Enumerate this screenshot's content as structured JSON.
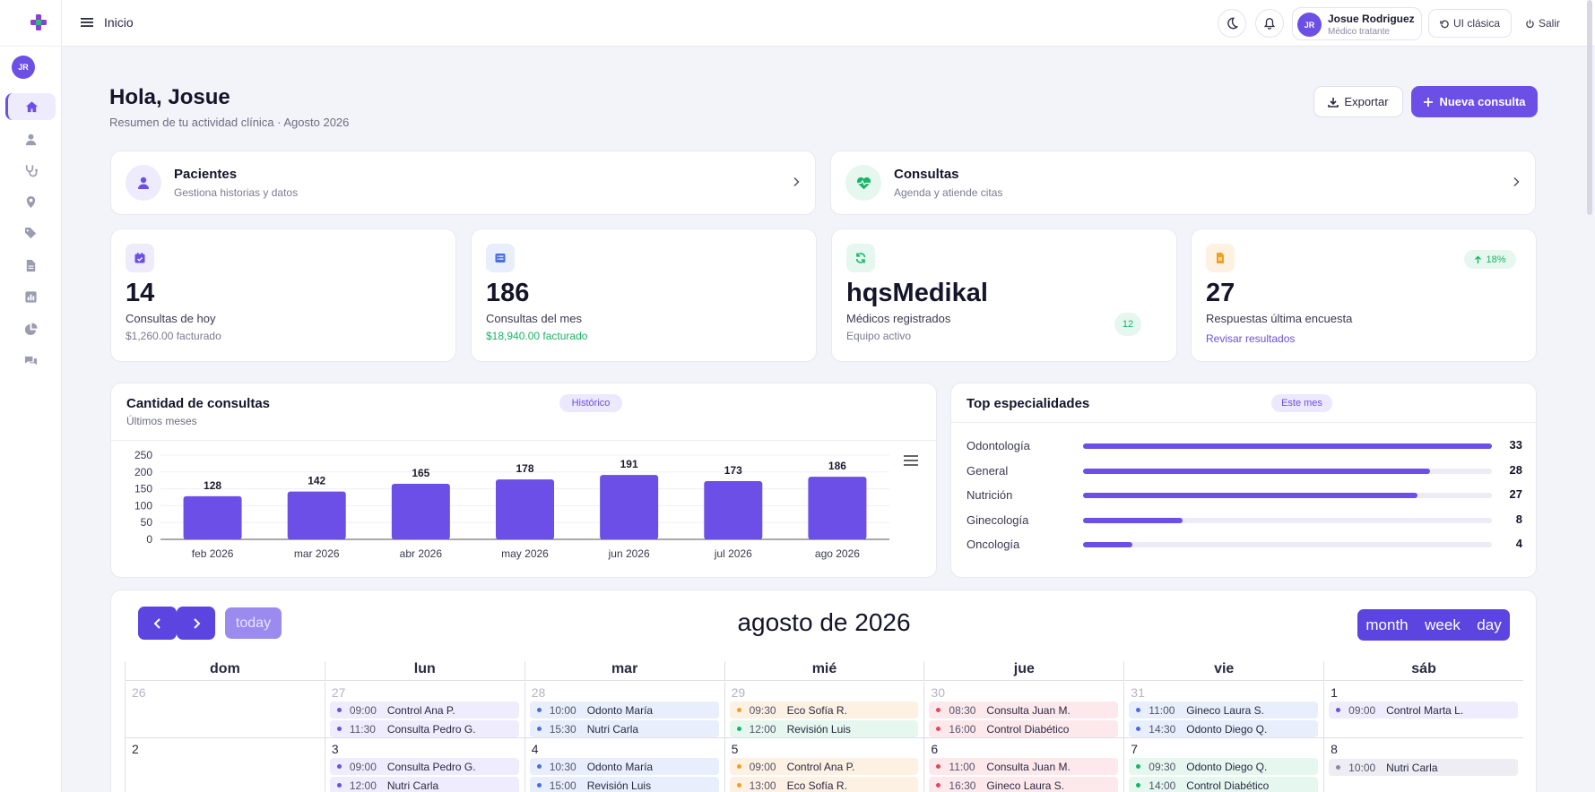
{
  "topbar": {
    "breadcrumb": "Inicio",
    "user_initials": "JR",
    "user_name": "Josue Rodriguez",
    "user_role": "Médico tratante",
    "classic_label": "UI clásica",
    "logout_label": "Salir"
  },
  "sidebar": {
    "avatar_initials": "JR",
    "items": [
      "home-icon",
      "user-icon",
      "stethoscope-icon",
      "map-pin-icon",
      "tags-icon",
      "file-icon",
      "bar-chart-icon",
      "pie-chart-icon",
      "chat-icon"
    ]
  },
  "header": {
    "title": "Hola, Josue",
    "subtitle": "Resumen de tu actividad clínica · Agosto 2026",
    "export_label": "Exportar",
    "new_label": "Nueva consulta"
  },
  "nav_cards": [
    {
      "title": "Pacientes",
      "subtitle": "Gestiona historias y datos"
    },
    {
      "title": "Consultas",
      "subtitle": "Agenda y atiende citas"
    }
  ],
  "stats": [
    {
      "value": "14",
      "label": "Consultas de hoy",
      "sub": "$1,260.00 facturado"
    },
    {
      "value": "186",
      "label": "Consultas del mes",
      "sub": "$18,940.00 facturado"
    },
    {
      "value": "hqsMedikal",
      "label": "Médicos registrados",
      "sub": "Equipo activo",
      "badge": "12"
    },
    {
      "value": "27",
      "label": "Respuestas última encuesta",
      "sub": "Revisar resultados",
      "badge": "18%"
    }
  ],
  "colors": {
    "accent": "#6c4fe6",
    "green": "#18b567",
    "orange": "#f0a020"
  },
  "chart": {
    "title": "Cantidad de consultas",
    "subtitle": "Últimos meses",
    "badge": "Histórico"
  },
  "chart_data": {
    "type": "bar",
    "categories": [
      "feb 2026",
      "mar 2026",
      "abr 2026",
      "may 2026",
      "jun 2026",
      "jul 2026",
      "ago 2026"
    ],
    "values": [
      128,
      142,
      165,
      178,
      191,
      173,
      186
    ],
    "yticks": [
      0,
      50,
      100,
      150,
      200,
      250
    ],
    "ylim": [
      0,
      250
    ],
    "color": "#6c4fe6"
  },
  "specialties": {
    "title": "Top especialidades",
    "badge": "Este mes",
    "max": 33,
    "items": [
      {
        "name": "Odontología",
        "count": 33
      },
      {
        "name": "General",
        "count": 28
      },
      {
        "name": "Nutrición",
        "count": 27
      },
      {
        "name": "Ginecología",
        "count": 8
      },
      {
        "name": "Oncología",
        "count": 4
      }
    ]
  },
  "calendar": {
    "title": "agosto de 2026",
    "today_label": "today",
    "views": [
      "month",
      "week",
      "day"
    ],
    "weekdays": [
      "dom",
      "lun",
      "mar",
      "mié",
      "jue",
      "vie",
      "sáb"
    ],
    "week1": {
      "days": [
        "26",
        "27",
        "28",
        "29",
        "30",
        "31",
        "1"
      ],
      "events": [
        [],
        [
          {
            "time": "09:00",
            "title": "Control Ana P.",
            "color": "purple"
          },
          {
            "time": "11:30",
            "title": "Consulta Pedro G.",
            "color": "purple"
          }
        ],
        [
          {
            "time": "10:00",
            "title": "Odonto María",
            "color": "blue"
          },
          {
            "time": "15:30",
            "title": "Nutri Carla",
            "color": "blue"
          }
        ],
        [
          {
            "time": "09:30",
            "title": "Eco Sofía R.",
            "color": "orange"
          },
          {
            "time": "12:00",
            "title": "Revisión Luis",
            "color": "green"
          }
        ],
        [
          {
            "time": "08:30",
            "title": "Consulta Juan M.",
            "color": "red"
          },
          {
            "time": "16:00",
            "title": "Control Diabético",
            "color": "red"
          }
        ],
        [
          {
            "time": "11:00",
            "title": "Gineco Laura S.",
            "color": "blue"
          },
          {
            "time": "14:30",
            "title": "Odonto Diego Q.",
            "color": "blue"
          }
        ],
        [
          {
            "time": "09:00",
            "title": "Control Marta L.",
            "color": "purple"
          }
        ]
      ]
    },
    "week2": {
      "days": [
        "2",
        "3",
        "4",
        "5",
        "6",
        "7",
        "8"
      ],
      "events": [
        [],
        [
          {
            "time": "09:00",
            "title": "Consulta Pedro G.",
            "color": "purple"
          },
          {
            "time": "12:00",
            "title": "Nutri Carla",
            "color": "purple"
          }
        ],
        [
          {
            "time": "10:30",
            "title": "Odonto María",
            "color": "blue"
          },
          {
            "time": "15:00",
            "title": "Revisión Luis",
            "color": "blue"
          }
        ],
        [
          {
            "time": "09:00",
            "title": "Control Ana P.",
            "color": "orange"
          },
          {
            "time": "13:00",
            "title": "Eco Sofía R.",
            "color": "orange"
          }
        ],
        [
          {
            "time": "11:00",
            "title": "Consulta Juan M.",
            "color": "red"
          },
          {
            "time": "16:30",
            "title": "Gineco Laura S.",
            "color": "red"
          }
        ],
        [
          {
            "time": "09:30",
            "title": "Odonto Diego Q.",
            "color": "green"
          },
          {
            "time": "14:00",
            "title": "Control Diabético",
            "color": "green"
          }
        ],
        [
          {
            "time": "10:00",
            "title": "Nutri Carla",
            "color": "gray"
          }
        ]
      ]
    }
  }
}
